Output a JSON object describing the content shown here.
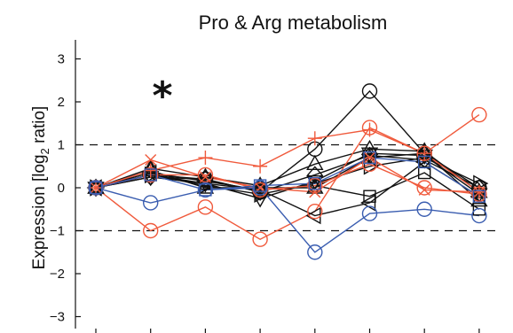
{
  "chart_data": {
    "type": "line",
    "title": "Pro & Arg metabolism",
    "ylabel_main": "Expression [log",
    "ylabel_sub": "2",
    "ylabel_end": " ratio]",
    "annotation": "*",
    "ylim": [
      -3.5,
      3.5
    ],
    "yticks": [
      3,
      2,
      1,
      0,
      -1,
      -2,
      -3
    ],
    "ytick_labels": [
      "3",
      "2",
      "1",
      "0",
      "−1",
      "−2",
      "−3"
    ],
    "reference_lines": [
      1,
      -1
    ],
    "x": [
      1,
      2,
      3,
      4,
      5,
      6,
      7,
      8
    ],
    "colors": {
      "black": "#111111",
      "red": "#f05a3c",
      "blue": "#3a5db0"
    },
    "series": [
      {
        "color": "black",
        "marker": "circle",
        "values": [
          0,
          0.3,
          0.2,
          -0.1,
          0.9,
          2.25,
          0.8,
          0.0
        ]
      },
      {
        "color": "black",
        "marker": "triangle-up",
        "values": [
          0,
          0.45,
          0.25,
          0.05,
          0.55,
          0.9,
          0.85,
          -0.1
        ]
      },
      {
        "color": "black",
        "marker": "triangle-down",
        "values": [
          0,
          0.25,
          0.1,
          -0.25,
          0.15,
          0.8,
          0.75,
          -0.15
        ]
      },
      {
        "color": "black",
        "marker": "triangle-right",
        "values": [
          0,
          0.3,
          0.05,
          -0.15,
          0.1,
          0.5,
          0.7,
          0.1
        ]
      },
      {
        "color": "black",
        "marker": "triangle-left",
        "values": [
          0,
          0.35,
          0.15,
          -0.05,
          -0.65,
          -0.35,
          0.6,
          -0.2
        ]
      },
      {
        "color": "black",
        "marker": "square",
        "values": [
          0,
          0.3,
          0.1,
          -0.05,
          0.05,
          -0.2,
          0.35,
          -0.5
        ]
      },
      {
        "color": "black",
        "marker": "diamond",
        "values": [
          0,
          0.25,
          0.2,
          -0.1,
          0.3,
          0.75,
          0.65,
          0.0
        ]
      },
      {
        "color": "black",
        "marker": "triangle-up",
        "values": [
          0,
          0.4,
          0.0,
          0.0,
          0.0,
          0.7,
          0.8,
          -0.3
        ]
      },
      {
        "color": "red",
        "marker": "circle",
        "values": [
          0,
          -1.0,
          -0.45,
          -1.2,
          -0.55,
          1.4,
          0.8,
          1.7
        ]
      },
      {
        "color": "red",
        "marker": "plus",
        "values": [
          0,
          0.4,
          0.7,
          0.5,
          1.15,
          1.35,
          0.8,
          -0.1
        ]
      },
      {
        "color": "red",
        "marker": "x",
        "values": [
          0,
          0.65,
          0.25,
          0.0,
          -0.1,
          0.7,
          -0.05,
          -0.1
        ]
      },
      {
        "color": "red",
        "marker": "circle",
        "values": [
          0,
          0.3,
          0.3,
          -0.05,
          0.05,
          0.55,
          0.0,
          -0.15
        ]
      },
      {
        "color": "blue",
        "marker": "circle",
        "values": [
          0,
          -0.35,
          -0.05,
          0.0,
          -1.5,
          -0.6,
          -0.5,
          -0.65
        ]
      },
      {
        "color": "blue",
        "marker": "square",
        "values": [
          0,
          0.3,
          -0.05,
          0.05,
          0.1,
          0.7,
          0.6,
          -0.2
        ]
      }
    ]
  }
}
